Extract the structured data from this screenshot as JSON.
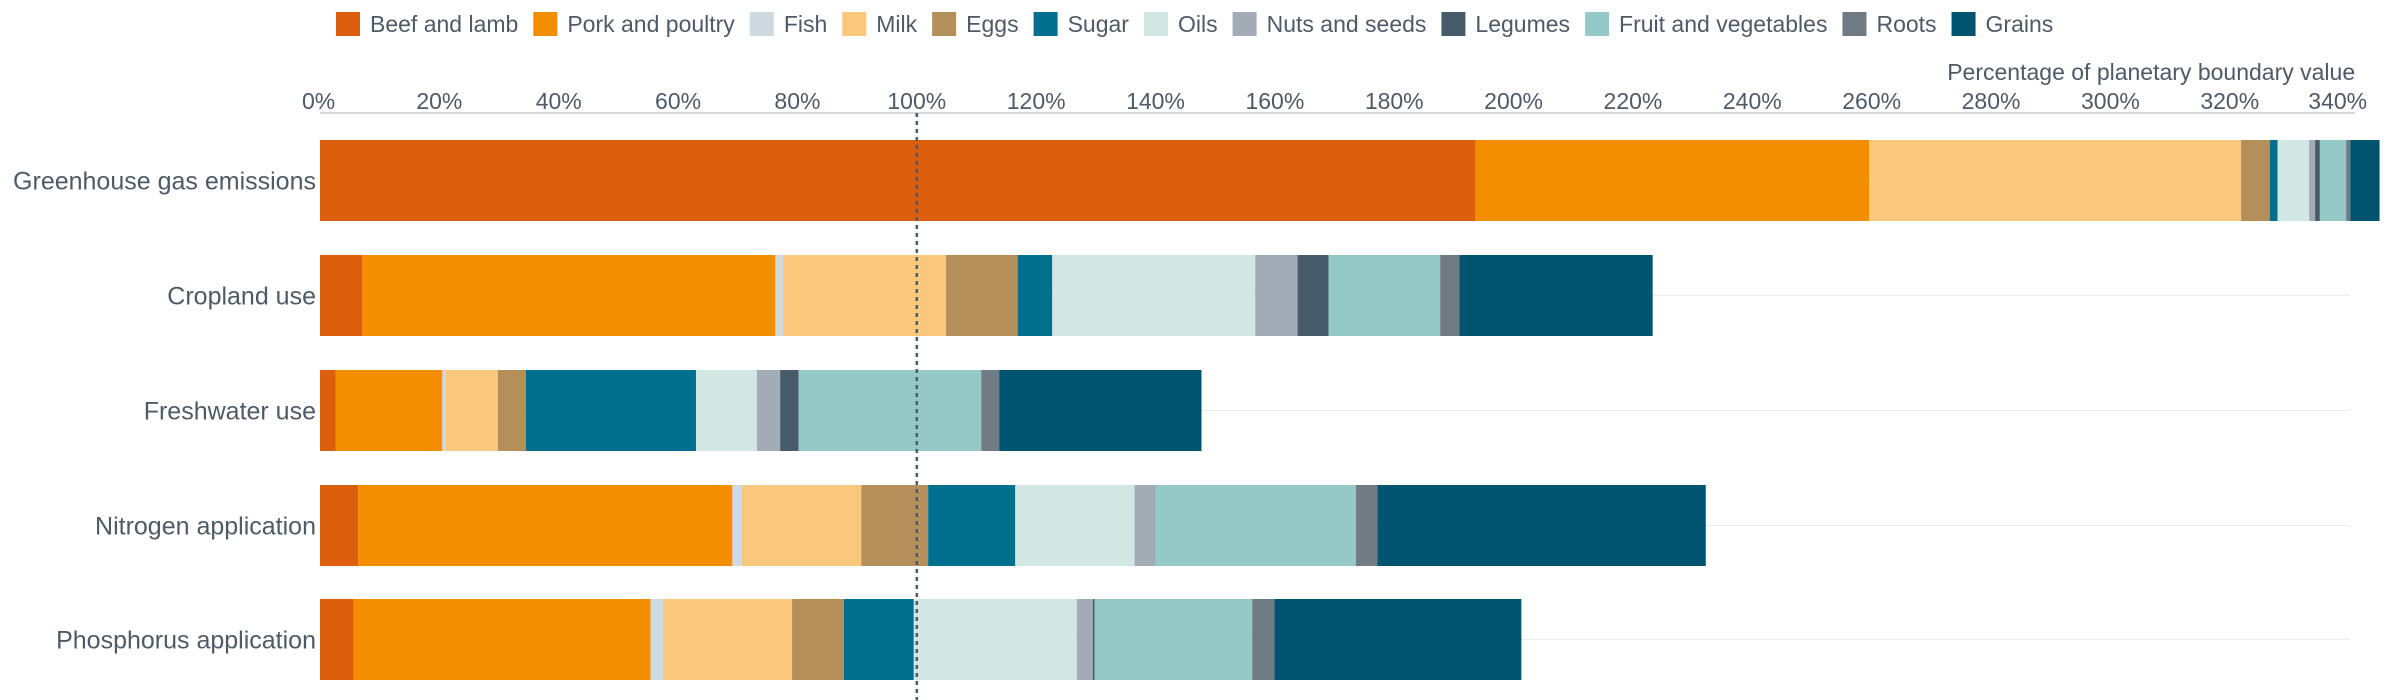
{
  "chart_data": {
    "type": "bar",
    "orientation": "horizontal",
    "stacked": true,
    "xlabel": "Percentage of planetary boundary value",
    "xlim": [
      0,
      340
    ],
    "xticks": [
      0,
      20,
      40,
      60,
      80,
      100,
      120,
      140,
      160,
      180,
      200,
      220,
      240,
      260,
      280,
      300,
      320,
      340
    ],
    "tick_suffix": "%",
    "reference_line": 100,
    "legend_position": "top",
    "categories": [
      "Greenhouse gas emissions",
      "Cropland use",
      "Freshwater use",
      "Nitrogen application",
      "Phosphorus application"
    ],
    "series": [
      {
        "name": "Beef and lamb",
        "color": "#dd5e0c",
        "values": [
          193.6,
          7.1,
          2.6,
          6.4,
          5.6
        ]
      },
      {
        "name": "Pork and poultry",
        "color": "#f28e00",
        "values": [
          66.0,
          69.2,
          17.9,
          62.7,
          49.8
        ]
      },
      {
        "name": "Fish",
        "color": "#cfd9e0",
        "values": [
          0.0,
          1.3,
          0.5,
          1.6,
          2.1
        ]
      },
      {
        "name": "Milk",
        "color": "#fac87c",
        "values": [
          62.3,
          27.3,
          8.8,
          20.0,
          21.6
        ]
      },
      {
        "name": "Eggs",
        "color": "#b58f5a",
        "values": [
          4.8,
          12.0,
          4.7,
          11.2,
          8.7
        ]
      },
      {
        "name": "Sugar",
        "color": "#00708e",
        "values": [
          1.3,
          5.8,
          28.5,
          14.6,
          11.7
        ]
      },
      {
        "name": "Oils",
        "color": "#d2e6e4",
        "values": [
          5.3,
          34.0,
          10.2,
          20.0,
          27.3
        ]
      },
      {
        "name": "Nuts and seeds",
        "color": "#a2acb6",
        "values": [
          1.0,
          7.1,
          3.9,
          3.5,
          2.7
        ]
      },
      {
        "name": "Legumes",
        "color": "#475b6a",
        "values": [
          0.8,
          5.2,
          3.1,
          0.0,
          0.3
        ]
      },
      {
        "name": "Fruit and vegetables",
        "color": "#95c9c7",
        "values": [
          4.4,
          18.7,
          30.6,
          33.6,
          26.4
        ]
      },
      {
        "name": "Roots",
        "color": "#717b84",
        "values": [
          0.7,
          3.2,
          3.0,
          3.6,
          3.7
        ]
      },
      {
        "name": "Grains",
        "color": "#005470",
        "values": [
          4.9,
          32.4,
          33.9,
          55.0,
          41.4
        ]
      }
    ]
  }
}
